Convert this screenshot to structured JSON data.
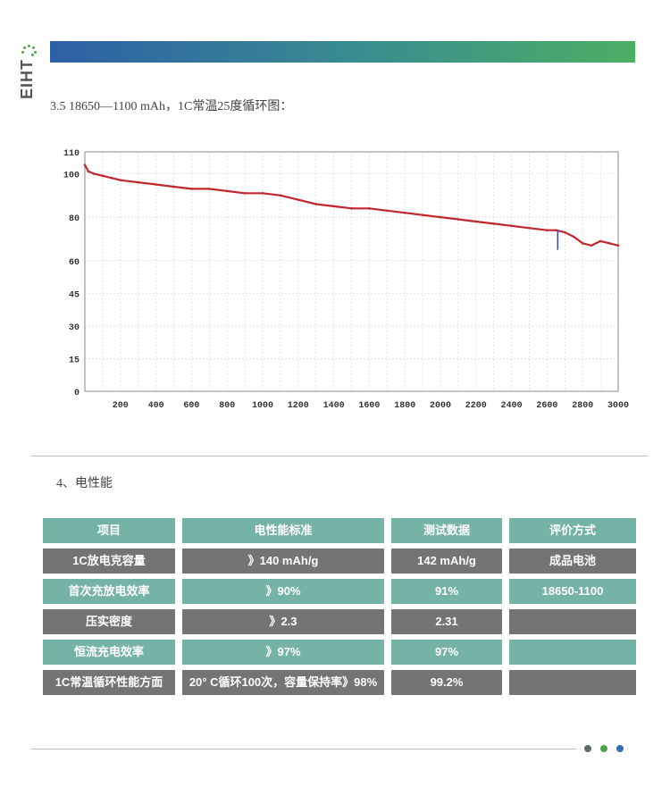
{
  "logo": {
    "text": "EIHT"
  },
  "section_3": {
    "title": "3.5 18650—1100 mAh，1C常温25度循环图："
  },
  "chart_data": {
    "type": "line",
    "title": "",
    "xlabel": "",
    "ylabel": "",
    "xlim": [
      0,
      3000
    ],
    "ylim": [
      0,
      110
    ],
    "x_ticks": [
      "200",
      "400",
      "600",
      "800",
      "1000",
      "1200",
      "1400",
      "1600",
      "1800",
      "2000",
      "2200",
      "2400",
      "2600",
      "2800",
      "3000"
    ],
    "y_ticks": [
      {
        "value": 0,
        "label": "0"
      },
      {
        "value": 15,
        "label": "15"
      },
      {
        "value": 30,
        "label": "30"
      },
      {
        "value": 45,
        "label": "45"
      },
      {
        "value": 60,
        "label": "60"
      },
      {
        "value": 80,
        "label": "80"
      },
      {
        "value": 100,
        "label": "100"
      },
      {
        "value": 110,
        "label": "110"
      }
    ],
    "grid": true,
    "series": [
      {
        "color": "#c0282d",
        "x": [
          0,
          20,
          50,
          100,
          150,
          200,
          300,
          400,
          500,
          600,
          700,
          800,
          900,
          1000,
          1100,
          1200,
          1300,
          1400,
          1500,
          1600,
          1700,
          1800,
          1900,
          2000,
          2100,
          2200,
          2300,
          2400,
          2500,
          2600,
          2650,
          2700,
          2750,
          2800,
          2850,
          2900,
          2950,
          3000
        ],
        "y": [
          104,
          101,
          100,
          99,
          98,
          97,
          96,
          95,
          94,
          93,
          93,
          92,
          91,
          91,
          90,
          88,
          86,
          85,
          84,
          84,
          83,
          82,
          81,
          80,
          79,
          78,
          77,
          76,
          75,
          74,
          74,
          73,
          71,
          68,
          67,
          69,
          68,
          67
        ]
      }
    ],
    "annotations": [
      {
        "color": "#3a4fa0",
        "x": 2660,
        "y_from": 74,
        "y_to": 65
      }
    ]
  },
  "section_4": {
    "title": "4、电性能"
  },
  "table": {
    "headers": [
      "项目",
      "电性能标准",
      "测试数据",
      "评价方式"
    ],
    "rows": [
      [
        "1C放电克容量",
        "》140 mAh/g",
        "142 mAh/g",
        "成品电池"
      ],
      [
        "首次充放电效率",
        "》90%",
        "91%",
        "18650-1100"
      ],
      [
        "压实密度",
        "》2.3",
        "2.31",
        ""
      ],
      [
        "恒流充电效率",
        "》97%",
        "97%",
        ""
      ],
      [
        "1C常温循环性能方面",
        "20° C循环100次，容量保持率》98%",
        "99.2%",
        ""
      ]
    ]
  },
  "colors": {
    "teal": "#76b3a7",
    "gray": "#757473",
    "dot_1": "#5c6c68",
    "dot_2": "#4aa64a",
    "dot_3": "#2f6fb5"
  }
}
